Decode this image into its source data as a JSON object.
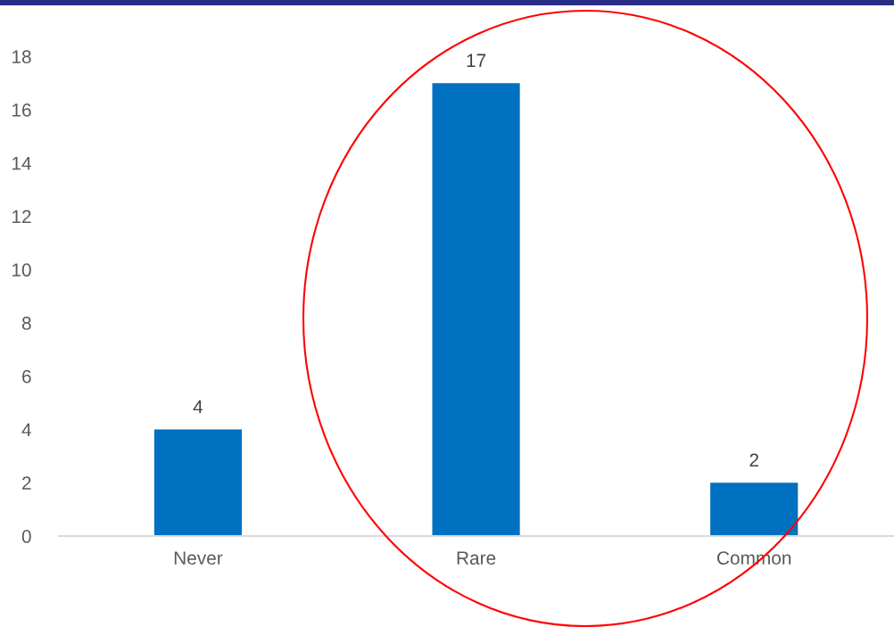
{
  "chart_data": {
    "type": "bar",
    "categories": [
      "Never",
      "Rare",
      "Common"
    ],
    "values": [
      4,
      17,
      2
    ],
    "color": "#0070c0",
    "ylim": [
      0,
      18
    ],
    "yticks": [
      0,
      2,
      4,
      6,
      8,
      10,
      12,
      14,
      16,
      18
    ],
    "data_labels": true,
    "grid": false,
    "legend": false
  }
}
